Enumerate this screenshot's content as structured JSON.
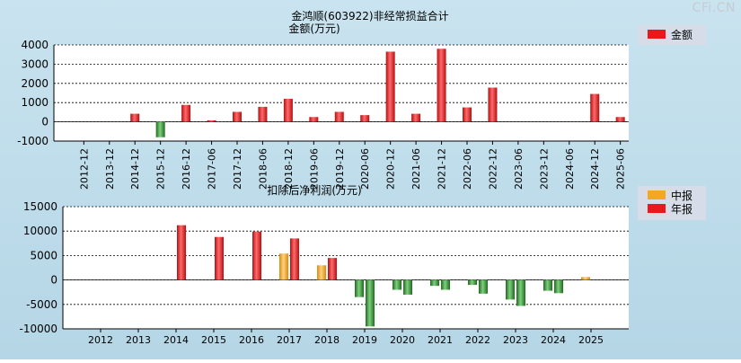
{
  "watermark": "CFi.CN",
  "colors": {
    "annual_red": "#e8181d",
    "interim_orange": "#f5a623",
    "negative_green": "#2f8a2f",
    "legend_bg": "#d6dde8"
  },
  "chart_data": [
    {
      "type": "bar",
      "title": "金鸿顺(603922)非经常损益合计",
      "ylabel": "金额(万元)",
      "xlabel": "",
      "ylim": [
        -1000,
        4000
      ],
      "yticks": [
        -1000,
        0,
        1000,
        2000,
        3000,
        4000
      ],
      "legend": [
        "金额"
      ],
      "legend_position": "top-right",
      "categories": [
        "2012-12",
        "2013-12",
        "2014-12",
        "2015-12",
        "2016-12",
        "2017-06",
        "2017-12",
        "2018-06",
        "2018-12",
        "2019-06",
        "2019-12",
        "2020-06",
        "2020-12",
        "2021-06",
        "2021-12",
        "2022-06",
        "2022-12",
        "2023-06",
        "2023-12",
        "2024-06",
        "2024-12",
        "2025-06"
      ],
      "values": [
        0,
        0,
        420,
        -800,
        880,
        80,
        520,
        780,
        1200,
        250,
        520,
        350,
        3650,
        420,
        3800,
        750,
        1780,
        0,
        0,
        0,
        1450,
        250
      ]
    },
    {
      "type": "bar",
      "title": "扣除后净利润(万元)",
      "ylim": [
        -10000,
        15000
      ],
      "yticks": [
        -10000,
        -5000,
        0,
        5000,
        10000,
        15000
      ],
      "legend": [
        "中报",
        "年报"
      ],
      "legend_position": "top-right",
      "categories": [
        "2012",
        "2013",
        "2014",
        "2015",
        "2016",
        "2017",
        "2018",
        "2019",
        "2020",
        "2021",
        "2022",
        "2023",
        "2024",
        "2025"
      ],
      "series": [
        {
          "name": "中报",
          "values": [
            null,
            null,
            null,
            null,
            null,
            5400,
            3000,
            -3500,
            -2000,
            -1200,
            -1000,
            -4000,
            -2200,
            600
          ]
        },
        {
          "name": "年报",
          "values": [
            null,
            null,
            11200,
            8800,
            9900,
            8500,
            4500,
            -9500,
            -3000,
            -2000,
            -2800,
            -5300,
            -2700,
            null
          ]
        }
      ]
    }
  ]
}
